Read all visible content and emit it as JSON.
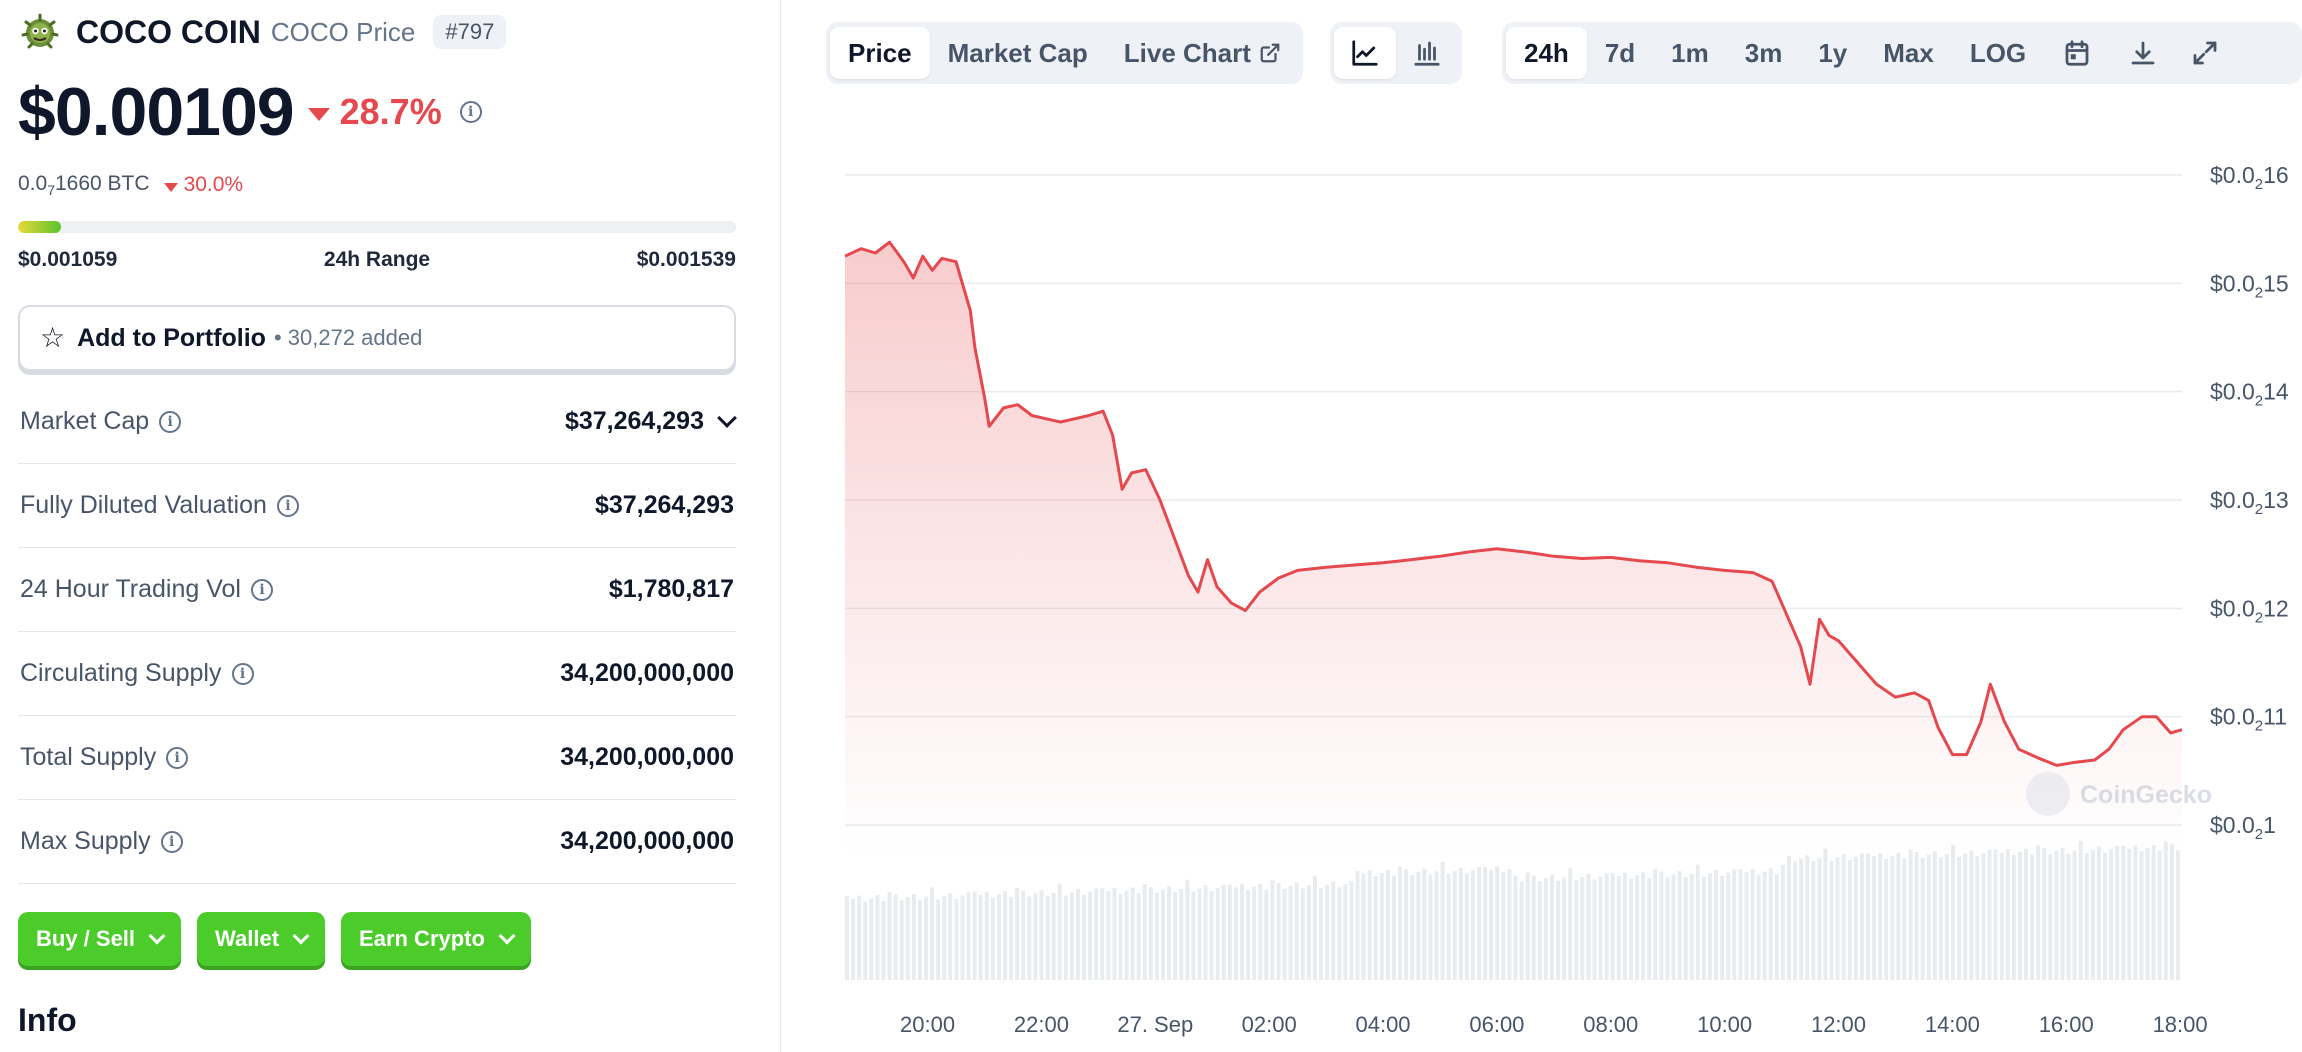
{
  "coin": {
    "name": "COCO COIN",
    "symbol_label": "COCO Price",
    "rank": "#797",
    "price": "$0.00109",
    "change_24h": "28.7%",
    "btc_price_prefix": "0.0",
    "btc_price_sub": "7",
    "btc_price_suffix": "1660 BTC",
    "btc_change": "30.0%"
  },
  "range": {
    "low": "$0.001059",
    "label": "24h Range",
    "high": "$0.001539",
    "fill_fraction": 0.06
  },
  "portfolio": {
    "label": "Add to Portfolio",
    "count": "• 30,272 added"
  },
  "stats": [
    {
      "label": "Market Cap",
      "value": "$37,264,293",
      "expand": true
    },
    {
      "label": "Fully Diluted Valuation",
      "value": "$37,264,293",
      "expand": false
    },
    {
      "label": "24 Hour Trading Vol",
      "value": "$1,780,817",
      "expand": false
    },
    {
      "label": "Circulating Supply",
      "value": "34,200,000,000",
      "expand": false
    },
    {
      "label": "Total Supply",
      "value": "34,200,000,000",
      "expand": false
    },
    {
      "label": "Max Supply",
      "value": "34,200,000,000",
      "expand": false
    }
  ],
  "actions": {
    "buy_sell": "Buy / Sell",
    "wallet": "Wallet",
    "earn": "Earn Crypto"
  },
  "info_title": "Info",
  "toolbar": {
    "views": [
      "Price",
      "Market Cap",
      "Live Chart"
    ],
    "active_view": "Price",
    "ranges": [
      "24h",
      "7d",
      "1m",
      "3m",
      "1y",
      "Max",
      "LOG"
    ],
    "active_range": "24h"
  },
  "colors": {
    "line": "#e5484d",
    "down": "#e5484d",
    "green": "#4bcc2b"
  },
  "chart_data": {
    "type": "area",
    "y_axis_side": "right",
    "y_ticks": [
      {
        "prefix": "$0.0",
        "sub": "2",
        "suffix": "16",
        "value": 0.0016
      },
      {
        "prefix": "$0.0",
        "sub": "2",
        "suffix": "15",
        "value": 0.0015
      },
      {
        "prefix": "$0.0",
        "sub": "2",
        "suffix": "14",
        "value": 0.0014
      },
      {
        "prefix": "$0.0",
        "sub": "2",
        "suffix": "13",
        "value": 0.0013
      },
      {
        "prefix": "$0.0",
        "sub": "2",
        "suffix": "12",
        "value": 0.0012
      },
      {
        "prefix": "$0.0",
        "sub": "2",
        "suffix": "11",
        "value": 0.0011
      },
      {
        "prefix": "$0.0",
        "sub": "2",
        "suffix": "1",
        "value": 0.001
      }
    ],
    "x_ticks": [
      {
        "label": "20:00",
        "t": "26 Sep 20:00"
      },
      {
        "label": "22:00",
        "t": "26 Sep 22:00"
      },
      {
        "label": "27. Sep",
        "t": "27 Sep 00:00"
      },
      {
        "label": "02:00",
        "t": "27 Sep 02:00"
      },
      {
        "label": "04:00",
        "t": "27 Sep 04:00"
      },
      {
        "label": "06:00",
        "t": "27 Sep 06:00"
      },
      {
        "label": "08:00",
        "t": "27 Sep 08:00"
      },
      {
        "label": "10:00",
        "t": "27 Sep 10:00"
      },
      {
        "label": "12:00",
        "t": "27 Sep 12:00"
      },
      {
        "label": "14:00",
        "t": "27 Sep 14:00"
      },
      {
        "label": "16:00",
        "t": "27 Sep 16:00"
      },
      {
        "label": "18:00",
        "t": "27 Sep 18:00"
      }
    ],
    "x_range": [
      "26 Sep 18:33",
      "27 Sep 18:02"
    ],
    "ylim": [
      0.00094,
      0.00163
    ],
    "series": [
      {
        "points": [
          [
            "26 Sep 18:33",
            0.001525
          ],
          [
            "26 Sep 18:50",
            0.001532
          ],
          [
            "26 Sep 19:05",
            0.001528
          ],
          [
            "26 Sep 19:20",
            0.001538
          ],
          [
            "26 Sep 19:35",
            0.00152
          ],
          [
            "26 Sep 19:45",
            0.001505
          ],
          [
            "26 Sep 19:55",
            0.001525
          ],
          [
            "26 Sep 20:05",
            0.001512
          ],
          [
            "26 Sep 20:15",
            0.001523
          ],
          [
            "26 Sep 20:30",
            0.00152
          ],
          [
            "26 Sep 20:45",
            0.001475
          ],
          [
            "26 Sep 20:50",
            0.00144
          ],
          [
            "26 Sep 21:00",
            0.001395
          ],
          [
            "26 Sep 21:05",
            0.001368
          ],
          [
            "26 Sep 21:20",
            0.001385
          ],
          [
            "26 Sep 21:35",
            0.001388
          ],
          [
            "26 Sep 21:50",
            0.001378
          ],
          [
            "26 Sep 22:05",
            0.001375
          ],
          [
            "26 Sep 22:20",
            0.001372
          ],
          [
            "26 Sep 22:35",
            0.001375
          ],
          [
            "26 Sep 22:50",
            0.001378
          ],
          [
            "26 Sep 23:05",
            0.001382
          ],
          [
            "26 Sep 23:15",
            0.00136
          ],
          [
            "26 Sep 23:25",
            0.00131
          ],
          [
            "26 Sep 23:35",
            0.001325
          ],
          [
            "26 Sep 23:50",
            0.001328
          ],
          [
            "27 Sep 00:05",
            0.0013
          ],
          [
            "27 Sep 00:20",
            0.001265
          ],
          [
            "27 Sep 00:35",
            0.00123
          ],
          [
            "27 Sep 00:45",
            0.001215
          ],
          [
            "27 Sep 00:55",
            0.001245
          ],
          [
            "27 Sep 01:05",
            0.00122
          ],
          [
            "27 Sep 01:20",
            0.001205
          ],
          [
            "27 Sep 01:35",
            0.001198
          ],
          [
            "27 Sep 01:50",
            0.001215
          ],
          [
            "27 Sep 02:10",
            0.001228
          ],
          [
            "27 Sep 02:30",
            0.001235
          ],
          [
            "27 Sep 03:00",
            0.001238
          ],
          [
            "27 Sep 03:30",
            0.00124
          ],
          [
            "27 Sep 04:00",
            0.001242
          ],
          [
            "27 Sep 04:30",
            0.001245
          ],
          [
            "27 Sep 05:00",
            0.001248
          ],
          [
            "27 Sep 05:30",
            0.001252
          ],
          [
            "27 Sep 06:00",
            0.001255
          ],
          [
            "27 Sep 06:30",
            0.001252
          ],
          [
            "27 Sep 07:00",
            0.001248
          ],
          [
            "27 Sep 07:30",
            0.001246
          ],
          [
            "27 Sep 08:00",
            0.001247
          ],
          [
            "27 Sep 08:30",
            0.001244
          ],
          [
            "27 Sep 09:00",
            0.001242
          ],
          [
            "27 Sep 09:30",
            0.001238
          ],
          [
            "27 Sep 10:00",
            0.001235
          ],
          [
            "27 Sep 10:30",
            0.001233
          ],
          [
            "27 Sep 10:50",
            0.001225
          ],
          [
            "27 Sep 11:05",
            0.001195
          ],
          [
            "27 Sep 11:20",
            0.001165
          ],
          [
            "27 Sep 11:30",
            0.00113
          ],
          [
            "27 Sep 11:40",
            0.00119
          ],
          [
            "27 Sep 11:50",
            0.001175
          ],
          [
            "27 Sep 12:00",
            0.00117
          ],
          [
            "27 Sep 12:20",
            0.00115
          ],
          [
            "27 Sep 12:40",
            0.00113
          ],
          [
            "27 Sep 13:00",
            0.001118
          ],
          [
            "27 Sep 13:20",
            0.001122
          ],
          [
            "27 Sep 13:35",
            0.001115
          ],
          [
            "27 Sep 13:45",
            0.00109
          ],
          [
            "27 Sep 14:00",
            0.001065
          ],
          [
            "27 Sep 14:15",
            0.001065
          ],
          [
            "27 Sep 14:30",
            0.001095
          ],
          [
            "27 Sep 14:40",
            0.00113
          ],
          [
            "27 Sep 14:55",
            0.001095
          ],
          [
            "27 Sep 15:10",
            0.00107
          ],
          [
            "27 Sep 15:30",
            0.001062
          ],
          [
            "27 Sep 15:50",
            0.001055
          ],
          [
            "27 Sep 16:10",
            0.001058
          ],
          [
            "27 Sep 16:30",
            0.00106
          ],
          [
            "27 Sep 16:45",
            0.00107
          ],
          [
            "27 Sep 17:00",
            0.001088
          ],
          [
            "27 Sep 17:20",
            0.0011
          ],
          [
            "27 Sep 17:35",
            0.0011
          ],
          [
            "27 Sep 17:50",
            0.001085
          ],
          [
            "27 Sep 18:02",
            0.001088
          ]
        ]
      }
    ],
    "volume_bars": true,
    "grid": "horizontal",
    "watermark": "CoinGecko"
  }
}
